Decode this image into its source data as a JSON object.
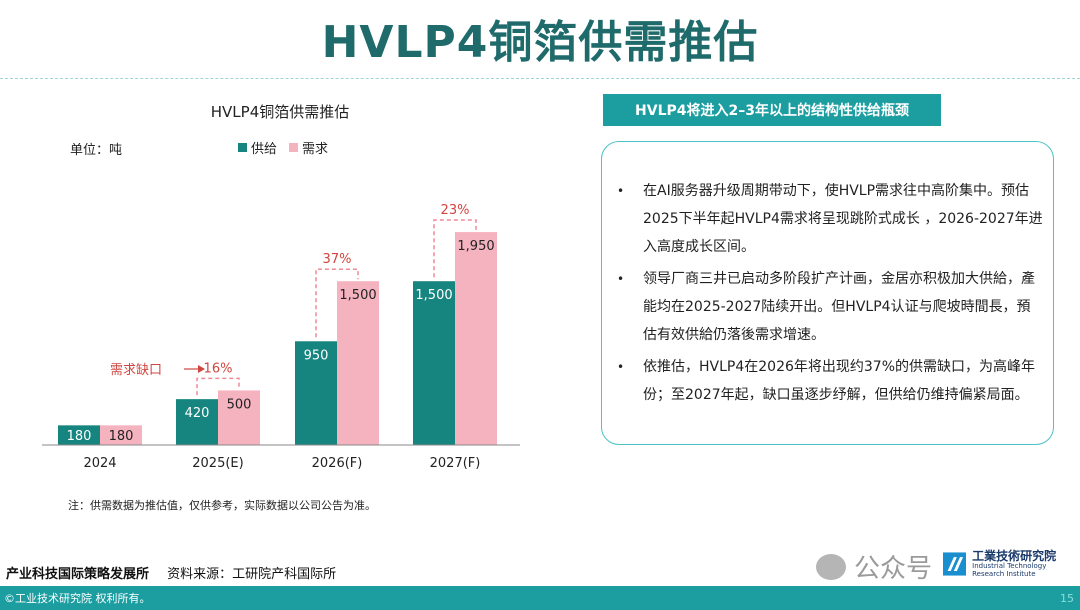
{
  "page": {
    "title": "HVLP4铜箔供需推估"
  },
  "chart_data": {
    "type": "bar",
    "title": "HVLP4铜箔供需推估",
    "unit": "单位：吨",
    "categories": [
      "2024",
      "2025(E)",
      "2026(F)",
      "2027(F)"
    ],
    "series": [
      {
        "name": "供给",
        "color": "#17857f",
        "values": [
          180,
          420,
          950,
          1500
        ]
      },
      {
        "name": "需求",
        "color": "#f5b3c0",
        "values": [
          180,
          500,
          1500,
          1950
        ]
      }
    ],
    "data_labels": {
      "供给": [
        "180",
        "420",
        "950",
        "1,500"
      ],
      "需求": [
        "180",
        "500",
        "1,500",
        "1,950"
      ]
    },
    "gap_labels": [
      null,
      "16%",
      "37%",
      "23%"
    ],
    "gap_annotation": "需求缺口",
    "legend_position": "top",
    "ylim": [
      0,
      2200
    ],
    "grid": false,
    "note": "注：供需数据为推估值，仅供参考，实际数据以公司公告为准。"
  },
  "panel": {
    "header": "HVLP4将进入2–3年以上的结构性供给瓶颈",
    "bullets": [
      "在AI服务器升级周期带动下，使HVLP需求往中高阶集中。预估2025下半年起HVLP4需求将呈现跳阶式成长 ，2026-2027年进入高度成长区间。",
      "领导厂商三井已启动多阶段扩产计画，金居亦积极加大供給，產能均在2025-2027陆续开出。但HVLP4认证与爬坡時間長，預估有效供給仍落後需求增速。",
      "依推估，HVLP4在2026年将出现约37%的供需缺口，为高峰年份；至2027年起，缺口虽逐步纾解，但供给仍维持偏紧局面。"
    ]
  },
  "footer": {
    "org": "产业科技国际策略发展所",
    "source": "资料来源：工研院产科国际所",
    "copyright": "©工业技术研究院  权利所有。",
    "page_number": "15",
    "watermark_text": "公众号",
    "logo_cn": "工業技術研究院",
    "logo_en": "Industrial Technology Research Institute"
  },
  "colors": {
    "accent": "#1c9ea1",
    "title": "#1f6b6b",
    "gap_red": "#d0453f",
    "gap_dash": "#f08a98"
  }
}
